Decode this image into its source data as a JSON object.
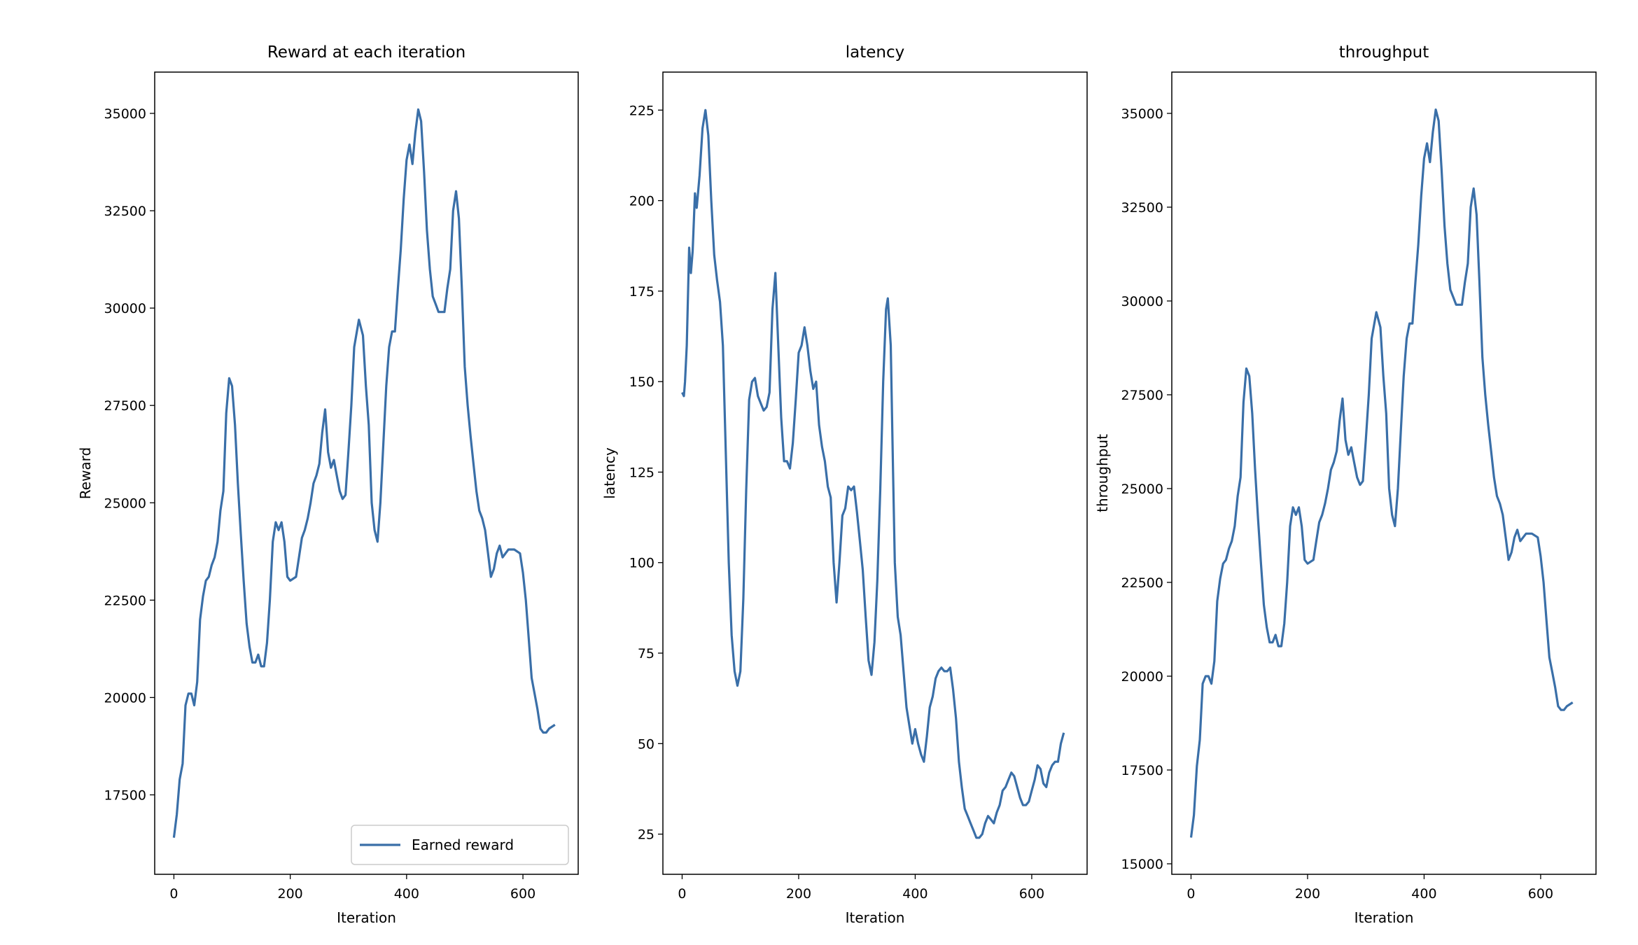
{
  "chart_data": [
    {
      "type": "line",
      "title": "Reward at each iteration",
      "xlabel": "Iteration",
      "ylabel": "Reward",
      "legend": "lower right",
      "x": [
        0,
        5,
        10,
        15,
        20,
        25,
        30,
        35,
        40,
        45,
        50,
        55,
        60,
        65,
        70,
        75,
        80,
        85,
        90,
        95,
        100,
        105,
        110,
        115,
        120,
        125,
        130,
        135,
        140,
        145,
        150,
        155,
        160,
        165,
        170,
        175,
        180,
        185,
        190,
        195,
        200,
        210,
        215,
        220,
        225,
        230,
        235,
        240,
        245,
        250,
        255,
        260,
        265,
        270,
        275,
        280,
        285,
        290,
        295,
        300,
        305,
        310,
        318,
        325,
        330,
        335,
        340,
        345,
        350,
        355,
        360,
        365,
        370,
        375,
        380,
        385,
        390,
        395,
        400,
        405,
        410,
        415,
        420,
        425,
        430,
        435,
        440,
        445,
        450,
        455,
        460,
        465,
        470,
        475,
        480,
        485,
        490,
        495,
        500,
        505,
        510,
        515,
        520,
        525,
        530,
        535,
        540,
        545,
        550,
        555,
        560,
        565,
        570,
        575,
        585,
        595,
        600,
        605,
        610,
        615,
        620,
        625,
        630,
        635,
        640,
        645,
        655
      ],
      "series": [
        {
          "name": "Earned reward",
          "color": "#3a6fa8",
          "values": [
            16400,
            17000,
            17900,
            18300,
            19800,
            20100,
            20100,
            19800,
            20400,
            22000,
            22600,
            23000,
            23100,
            23400,
            23600,
            24000,
            24800,
            25300,
            27300,
            28200,
            28000,
            27000,
            25500,
            24200,
            23000,
            21900,
            21300,
            20900,
            20900,
            21100,
            20800,
            20800,
            21400,
            22500,
            24000,
            24500,
            24300,
            24500,
            24000,
            23100,
            23000,
            23100,
            23600,
            24100,
            24300,
            24600,
            25000,
            25500,
            25700,
            26000,
            26800,
            27400,
            26300,
            25900,
            26100,
            25700,
            25300,
            25100,
            25200,
            26300,
            27500,
            29000,
            29700,
            29300,
            28000,
            27000,
            25000,
            24300,
            24000,
            25000,
            26500,
            28000,
            29000,
            29400,
            29400,
            30500,
            31500,
            32800,
            33800,
            34200,
            33700,
            34500,
            35100,
            34800,
            33500,
            32000,
            31000,
            30300,
            30100,
            29900,
            29900,
            29900,
            30500,
            31000,
            32500,
            33000,
            32300,
            30500,
            28500,
            27500,
            26700,
            26000,
            25300,
            24800,
            24600,
            24300,
            23700,
            23100,
            23300,
            23700,
            23900,
            23600,
            23700,
            23800,
            23800,
            23700,
            23200,
            22500,
            21500,
            20500,
            20100,
            19700,
            19200,
            19100,
            19100,
            19200,
            19300
          ]
        }
      ],
      "xlim": [
        -33,
        695
      ],
      "ylim": [
        15460,
        36060
      ],
      "xticks": [
        0,
        200,
        400,
        600
      ],
      "yticks": [
        17500,
        20000,
        22500,
        25000,
        27500,
        30000,
        32500,
        35000
      ]
    },
    {
      "type": "line",
      "title": "latency",
      "xlabel": "Iteration",
      "ylabel": "latency",
      "x": [
        0,
        3,
        5,
        8,
        12,
        15,
        18,
        22,
        25,
        30,
        35,
        40,
        45,
        50,
        55,
        60,
        65,
        70,
        75,
        80,
        85,
        90,
        95,
        100,
        105,
        110,
        115,
        120,
        125,
        130,
        135,
        140,
        145,
        150,
        155,
        160,
        165,
        170,
        175,
        180,
        185,
        190,
        195,
        200,
        205,
        210,
        215,
        220,
        225,
        230,
        235,
        240,
        245,
        250,
        255,
        260,
        265,
        270,
        275,
        280,
        285,
        290,
        295,
        300,
        305,
        310,
        315,
        320,
        325,
        330,
        335,
        340,
        345,
        350,
        353,
        358,
        362,
        365,
        370,
        375,
        380,
        385,
        390,
        395,
        400,
        405,
        410,
        415,
        420,
        425,
        430,
        435,
        440,
        445,
        450,
        455,
        460,
        465,
        470,
        475,
        480,
        485,
        490,
        495,
        500,
        505,
        510,
        515,
        520,
        525,
        530,
        535,
        540,
        545,
        550,
        555,
        560,
        565,
        570,
        575,
        580,
        585,
        590,
        595,
        600,
        605,
        610,
        615,
        620,
        625,
        630,
        635,
        640,
        645,
        650,
        655
      ],
      "series": [
        {
          "color": "#3a6fa8",
          "values": [
            147,
            146,
            150,
            160,
            187,
            180,
            186,
            202,
            198,
            207,
            220,
            225,
            218,
            200,
            185,
            178,
            172,
            160,
            130,
            100,
            80,
            70,
            66,
            70,
            90,
            120,
            145,
            150,
            151,
            146,
            144,
            142,
            143,
            147,
            170,
            180,
            160,
            140,
            128,
            128,
            126,
            133,
            145,
            158,
            160,
            165,
            160,
            153,
            148,
            150,
            138,
            132,
            128,
            121,
            118,
            100,
            89,
            100,
            113,
            115,
            121,
            120,
            121,
            114,
            106,
            98,
            85,
            73,
            69,
            78,
            95,
            120,
            150,
            170,
            173,
            160,
            125,
            100,
            85,
            80,
            70,
            60,
            55,
            50,
            54,
            50,
            47,
            45,
            52,
            60,
            63,
            68,
            70,
            71,
            70,
            70,
            71,
            65,
            57,
            45,
            38,
            32,
            30,
            28,
            26,
            24,
            24,
            25,
            28,
            30,
            29,
            28,
            31,
            33,
            37,
            38,
            40,
            42,
            41,
            38,
            35,
            33,
            33,
            34,
            37,
            40,
            44,
            43,
            39,
            38,
            42,
            44,
            45,
            45,
            50,
            53
          ]
        }
      ],
      "xlim": [
        -33,
        695
      ],
      "ylim": [
        13.9,
        235.5
      ],
      "xticks": [
        0,
        200,
        400,
        600
      ],
      "yticks": [
        25,
        50,
        75,
        100,
        125,
        150,
        175,
        200,
        225
      ]
    },
    {
      "type": "line",
      "title": "throughput",
      "xlabel": "Iteration",
      "ylabel": "throughput",
      "x": [
        0,
        5,
        10,
        15,
        20,
        25,
        30,
        35,
        40,
        45,
        50,
        55,
        60,
        65,
        70,
        75,
        80,
        85,
        90,
        95,
        100,
        105,
        110,
        115,
        120,
        125,
        130,
        135,
        140,
        145,
        150,
        155,
        160,
        165,
        170,
        175,
        180,
        185,
        190,
        195,
        200,
        210,
        215,
        220,
        225,
        230,
        235,
        240,
        245,
        250,
        255,
        260,
        265,
        270,
        275,
        280,
        285,
        290,
        295,
        300,
        305,
        310,
        318,
        325,
        330,
        335,
        340,
        345,
        350,
        355,
        360,
        365,
        370,
        375,
        380,
        385,
        390,
        395,
        400,
        405,
        410,
        415,
        420,
        425,
        430,
        435,
        440,
        445,
        450,
        455,
        460,
        465,
        470,
        475,
        480,
        485,
        490,
        495,
        500,
        505,
        510,
        515,
        520,
        525,
        530,
        535,
        540,
        545,
        550,
        555,
        560,
        565,
        570,
        575,
        585,
        595,
        600,
        605,
        610,
        615,
        620,
        625,
        630,
        635,
        640,
        645,
        655
      ],
      "series": [
        {
          "color": "#3a6fa8",
          "values": [
            15700,
            16300,
            17600,
            18300,
            19800,
            20000,
            20000,
            19800,
            20400,
            22000,
            22600,
            23000,
            23100,
            23400,
            23600,
            24000,
            24800,
            25300,
            27300,
            28200,
            28000,
            27000,
            25500,
            24200,
            23000,
            21900,
            21300,
            20900,
            20900,
            21100,
            20800,
            20800,
            21400,
            22500,
            24000,
            24500,
            24300,
            24500,
            24000,
            23100,
            23000,
            23100,
            23600,
            24100,
            24300,
            24600,
            25000,
            25500,
            25700,
            26000,
            26800,
            27400,
            26300,
            25900,
            26100,
            25700,
            25300,
            25100,
            25200,
            26300,
            27500,
            29000,
            29700,
            29300,
            28000,
            27000,
            25000,
            24300,
            24000,
            25000,
            26500,
            28000,
            29000,
            29400,
            29400,
            30500,
            31500,
            32800,
            33800,
            34200,
            33700,
            34500,
            35100,
            34800,
            33500,
            32000,
            31000,
            30300,
            30100,
            29900,
            29900,
            29900,
            30500,
            31000,
            32500,
            33000,
            32300,
            30500,
            28500,
            27500,
            26700,
            26000,
            25300,
            24800,
            24600,
            24300,
            23700,
            23100,
            23300,
            23700,
            23900,
            23600,
            23700,
            23800,
            23800,
            23700,
            23200,
            22500,
            21500,
            20500,
            20100,
            19700,
            19200,
            19100,
            19100,
            19200,
            19300
          ]
        }
      ],
      "xlim": [
        -33,
        695
      ],
      "ylim": [
        14720,
        36100
      ],
      "xticks": [
        0,
        200,
        400,
        600
      ],
      "yticks": [
        15000,
        17500,
        20000,
        22500,
        25000,
        27500,
        30000,
        32500,
        35000
      ]
    }
  ]
}
